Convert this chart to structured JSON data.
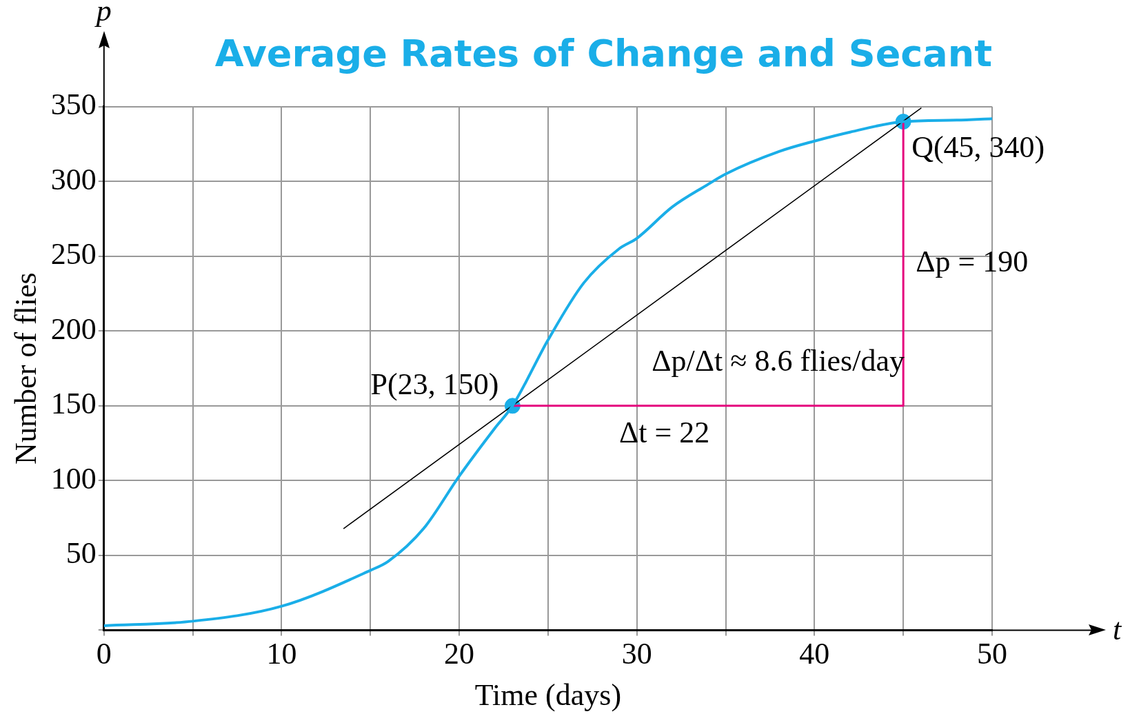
{
  "chart_data": {
    "type": "line",
    "title": "Average Rates of Change and Secant",
    "xlabel": "Time (days)",
    "ylabel": "Number of flies",
    "xlim": [
      0,
      50
    ],
    "ylim": [
      0,
      350
    ],
    "xticks": [
      0,
      {
        "value": 5,
        "label": null
      },
      10,
      {
        "value": 15,
        "label": null
      },
      20,
      {
        "value": 25,
        "label": null
      },
      30,
      {
        "value": 35,
        "label": null
      },
      40,
      {
        "value": 45,
        "label": null
      },
      50
    ],
    "yticks": [
      {
        "value": 0,
        "label": null
      },
      50,
      100,
      150,
      200,
      250,
      300,
      350
    ],
    "grid": true,
    "legend": false,
    "series": [
      {
        "type": "line",
        "color": "#1aaee8",
        "x": [
          0,
          5,
          10,
          15,
          16,
          18,
          20,
          22,
          23,
          25,
          27,
          29,
          30,
          32,
          34,
          35,
          38,
          40,
          42,
          45,
          48,
          50
        ],
        "values": [
          3,
          6,
          16,
          40,
          46,
          68,
          103,
          135,
          150,
          194,
          232,
          255,
          262,
          283,
          298,
          305,
          320,
          327,
          333,
          340,
          341,
          342
        ]
      },
      {
        "type": "line",
        "color": "#000000",
        "x": [
          13.5,
          46
        ],
        "values": [
          68,
          349
        ]
      },
      {
        "type": "line",
        "color": "#e5007d",
        "x": [
          23,
          45,
          45
        ],
        "values": [
          150,
          150,
          340
        ]
      },
      {
        "type": "scatter",
        "color": "#1aaee8",
        "x": [
          23,
          45
        ],
        "values": [
          150,
          340
        ]
      }
    ],
    "annotations": [
      "p",
      "t",
      {
        "text": "P(23, 150)",
        "x": 23,
        "y": 150
      },
      {
        "text": "Q(45, 340)",
        "x": 45,
        "y": 340
      },
      {
        "text": "Δp = 190",
        "x": 45,
        "y": 245
      },
      {
        "text": "Δt = 22",
        "x": 29,
        "y": 150
      },
      {
        "text": "Δp/Δt ≈ 8.6 flies/day",
        "x": 32,
        "y": 150
      }
    ]
  }
}
